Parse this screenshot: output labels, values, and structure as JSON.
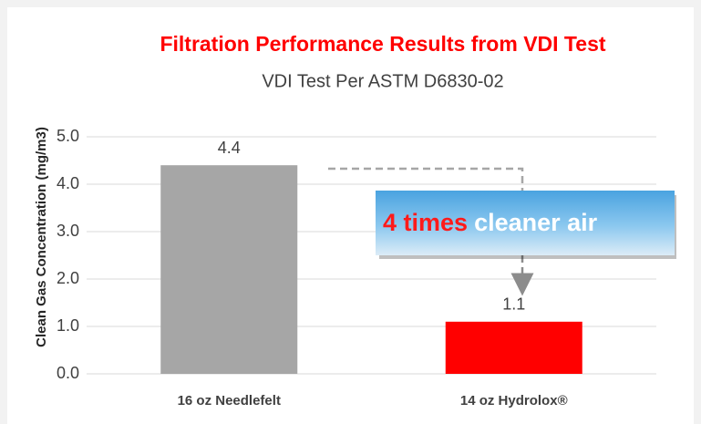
{
  "chart_data": {
    "type": "bar",
    "title": "Filtration Performance Results from VDI Test",
    "subtitle": "VDI Test Per ASTM D6830-02",
    "y_label": "Clean Gas Concentration (mg/m3)",
    "categories": [
      "16 oz Needlefelt",
      "14 oz Hydrolox®"
    ],
    "values": [
      4.4,
      1.1
    ],
    "colors": [
      "#a6a6a6",
      "#ff0000"
    ],
    "ylim": [
      0,
      5
    ],
    "yticks": [
      {
        "value": 0,
        "label": "0.0"
      },
      {
        "value": 1,
        "label": "1.0"
      },
      {
        "value": 2,
        "label": "2.0"
      },
      {
        "value": 3,
        "label": "3.0"
      },
      {
        "value": 4,
        "label": "4.0"
      },
      {
        "value": 5,
        "label": "5.0"
      }
    ],
    "grid": true,
    "annotation": {
      "emphasis": "4 times",
      "text": "cleaner air"
    }
  }
}
